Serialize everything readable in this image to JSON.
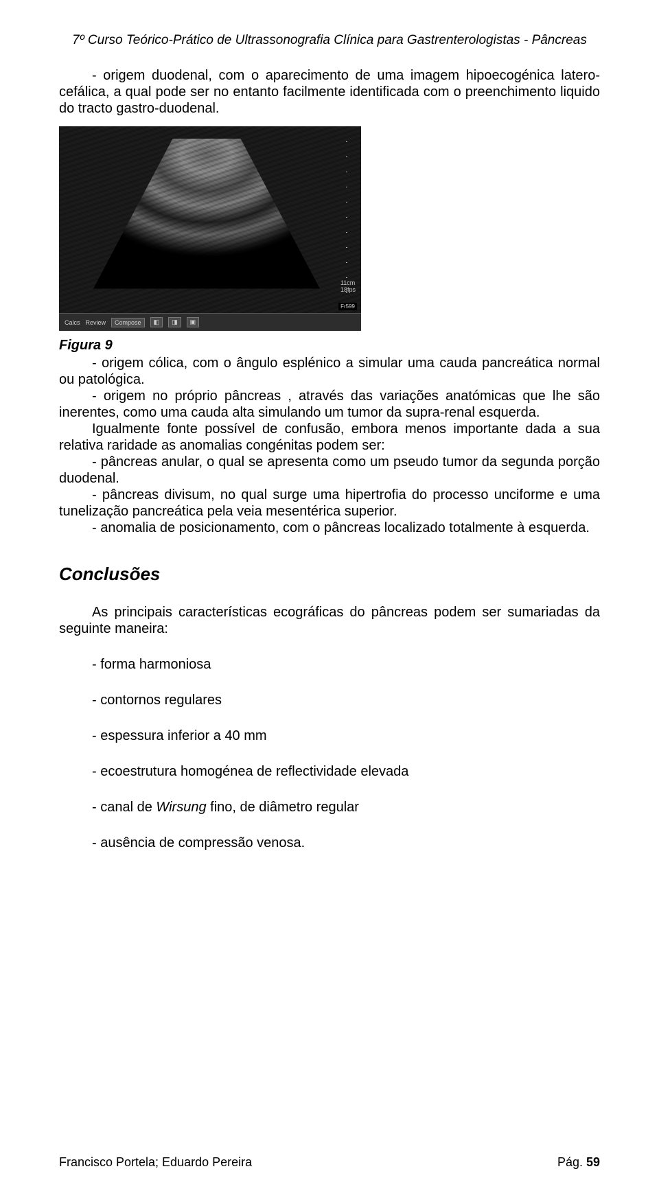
{
  "header": {
    "title": "7º Curso Teórico-Prático de Ultrassonografia Clínica para Gastrenterologistas - Pâncreas"
  },
  "intro": {
    "p1": "- origem duodenal, com o aparecimento de uma imagem  hipoecogénica latero-cefálica, a qual pode ser no entanto facilmente identificada com o preenchimento liquido do tracto gastro-duodenal."
  },
  "figure": {
    "label": "Figura 9",
    "depth_cm": "11cm",
    "fps": "18fps",
    "frame_label": "Fr599",
    "bottom_bar": {
      "calcs": "Calcs",
      "review": "Review",
      "compose": "Compose"
    }
  },
  "after_figure": {
    "p1": "- origem cólica, com o ângulo esplénico a simular uma cauda pancreática normal ou patológica.",
    "p2": "- origem no próprio pâncreas , através das variações anatómicas que lhe são inerentes, como uma cauda alta simulando um tumor da supra-renal esquerda.",
    "p3": "Igualmente fonte possível de confusão, embora menos importante dada a sua relativa raridade as anomalias congénitas podem ser:",
    "p4": "- pâncreas anular, o qual se apresenta como um pseudo tumor da segunda porção duodenal.",
    "p5": "- pâncreas divisum, no qual surge uma hipertrofia do processo unciforme e uma tunelização pancreática pela veia mesentérica superior.",
    "p6": "- anomalia de posicionamento, com o pâncreas localizado totalmente à esquerda."
  },
  "conclusions": {
    "heading": "Conclusões",
    "intro": "As principais características ecográficas do pâncreas podem ser sumariadas da seguinte maneira:",
    "items": {
      "b1": "- forma harmoniosa",
      "b2": "- contornos regulares",
      "b3": "- espessura inferior a 40 mm",
      "b4": "- ecoestrutura homogénea de reflectividade elevada",
      "b5_pre": "- canal de ",
      "b5_em": "Wirsung",
      "b5_post": " fino, de diâmetro regular",
      "b6": "- ausência de compressão venosa."
    }
  },
  "footer": {
    "authors": "Francisco Portela; Eduardo Pereira",
    "page_label": "Pág. ",
    "page_number": "59"
  }
}
